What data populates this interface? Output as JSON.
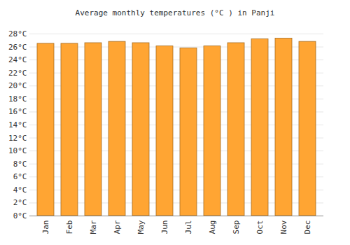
{
  "chart_data": {
    "type": "bar",
    "title": "Average monthly temperatures (°C ) in Panji",
    "categories": [
      "Jan",
      "Feb",
      "Mar",
      "Apr",
      "May",
      "Jun",
      "Jul",
      "Aug",
      "Sep",
      "Oct",
      "Nov",
      "Dec"
    ],
    "values": [
      26.5,
      26.5,
      26.6,
      26.8,
      26.6,
      26.1,
      25.8,
      26.1,
      26.6,
      27.2,
      27.3,
      26.8
    ],
    "color": "#ffa533",
    "ylim": [
      0,
      28
    ],
    "yticks": [
      {
        "value": 0,
        "label": "0°C"
      },
      {
        "value": 2,
        "label": "2°C"
      },
      {
        "value": 4,
        "label": "4°C"
      },
      {
        "value": 6,
        "label": "6°C"
      },
      {
        "value": 8,
        "label": "8°C"
      },
      {
        "value": 10,
        "label": "10°C"
      },
      {
        "value": 12,
        "label": "12°C"
      },
      {
        "value": 14,
        "label": "14°C"
      },
      {
        "value": 16,
        "label": "16°C"
      },
      {
        "value": 18,
        "label": "18°C"
      },
      {
        "value": 20,
        "label": "20°C"
      },
      {
        "value": 22,
        "label": "22°C"
      },
      {
        "value": 24,
        "label": "24°C"
      },
      {
        "value": 26,
        "label": "26°C"
      },
      {
        "value": 28,
        "label": "28°C"
      }
    ],
    "grid": true
  }
}
